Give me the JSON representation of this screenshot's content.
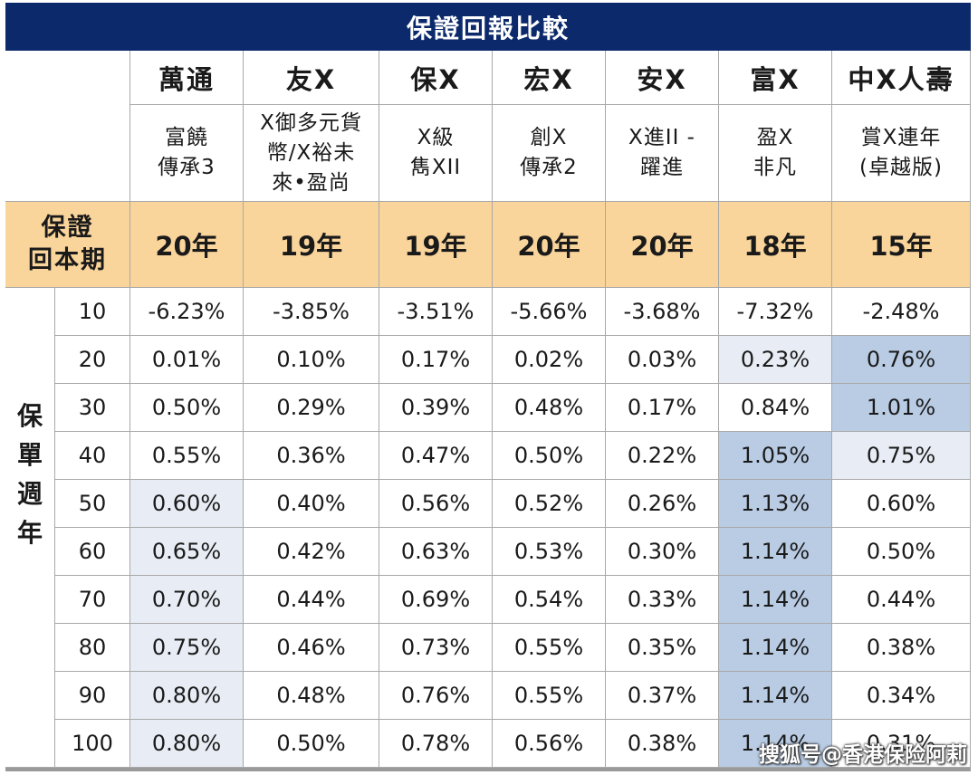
{
  "title": "保證回報比較",
  "companies": [
    {
      "name": "萬通",
      "product": "富饒\n傳承3",
      "period": "20年"
    },
    {
      "name": "友X",
      "product": "X御多元貨\n幣/X裕未\n來•盈尚",
      "period": "19年"
    },
    {
      "name": "保X",
      "product": "X級\n雋XII",
      "period": "19年"
    },
    {
      "name": "宏X",
      "product": "創X\n傳承2",
      "period": "20年"
    },
    {
      "name": "安X",
      "product": "X進II -\n躍進",
      "period": "20年"
    },
    {
      "name": "富X",
      "product": "盈X\n非凡",
      "period": "18年"
    },
    {
      "name": "中X人壽",
      "product": "賞X連年\n(卓越版)",
      "period": "15年"
    }
  ],
  "period_label": "保證\n回本期",
  "years_label": "保\n單\n週\n年",
  "rows": [
    {
      "year": "10",
      "values": [
        "-6.23%",
        "-3.85%",
        "-3.51%",
        "-5.66%",
        "-3.68%",
        "-7.32%",
        "-2.48%"
      ]
    },
    {
      "year": "20",
      "values": [
        "0.01%",
        "0.10%",
        "0.17%",
        "0.02%",
        "0.03%",
        "0.23%",
        "0.76%"
      ]
    },
    {
      "year": "30",
      "values": [
        "0.50%",
        "0.29%",
        "0.39%",
        "0.48%",
        "0.17%",
        "0.84%",
        "1.01%"
      ]
    },
    {
      "year": "40",
      "values": [
        "0.55%",
        "0.36%",
        "0.47%",
        "0.50%",
        "0.22%",
        "1.05%",
        "0.75%"
      ]
    },
    {
      "year": "50",
      "values": [
        "0.60%",
        "0.40%",
        "0.56%",
        "0.52%",
        "0.26%",
        "1.13%",
        "0.60%"
      ]
    },
    {
      "year": "60",
      "values": [
        "0.65%",
        "0.42%",
        "0.63%",
        "0.53%",
        "0.30%",
        "1.14%",
        "0.50%"
      ]
    },
    {
      "year": "70",
      "values": [
        "0.70%",
        "0.44%",
        "0.69%",
        "0.54%",
        "0.33%",
        "1.14%",
        "0.44%"
      ]
    },
    {
      "year": "80",
      "values": [
        "0.75%",
        "0.46%",
        "0.73%",
        "0.55%",
        "0.35%",
        "1.14%",
        "0.38%"
      ]
    },
    {
      "year": "90",
      "values": [
        "0.80%",
        "0.48%",
        "0.76%",
        "0.55%",
        "0.37%",
        "1.14%",
        "0.34%"
      ]
    },
    {
      "year": "100",
      "values": [
        "0.80%",
        "0.50%",
        "0.78%",
        "0.56%",
        "0.38%",
        "1.14%",
        "0.31%"
      ]
    }
  ],
  "highlights": {
    "light": [
      [
        1,
        5
      ],
      [
        4,
        0
      ],
      [
        5,
        0
      ],
      [
        6,
        0
      ],
      [
        7,
        0
      ],
      [
        8,
        0
      ],
      [
        9,
        0
      ],
      [
        3,
        6
      ]
    ],
    "strong": [
      [
        1,
        6
      ],
      [
        2,
        6
      ],
      [
        3,
        5
      ],
      [
        4,
        5
      ],
      [
        5,
        5
      ],
      [
        6,
        5
      ],
      [
        7,
        5
      ],
      [
        8,
        5
      ],
      [
        9,
        5
      ]
    ]
  },
  "colors": {
    "title_bg": "#0c2a6b",
    "period_bg": "#fad59b",
    "highlight_light": "#e8edf5",
    "highlight_strong": "#b9cce4"
  },
  "watermark": "搜狐号@香港保险阿莉"
}
